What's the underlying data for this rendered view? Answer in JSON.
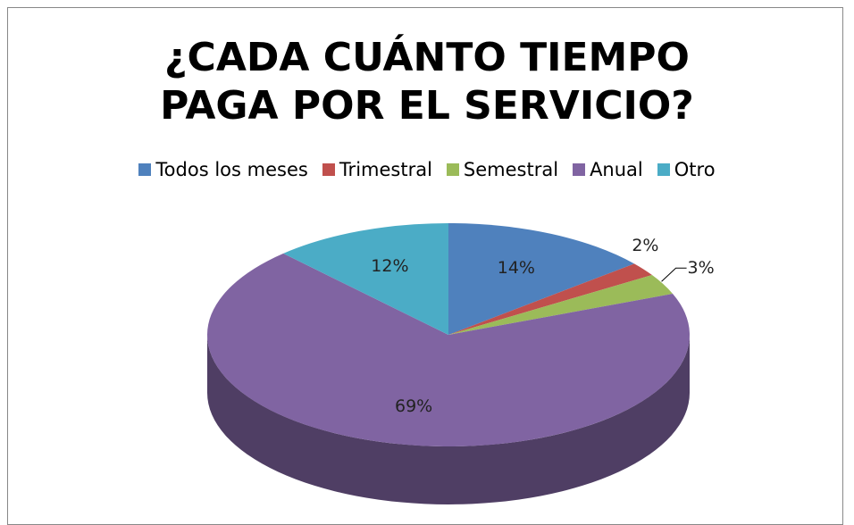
{
  "chart_data": {
    "type": "pie",
    "title": "¿CADA CUÁNTO TIEMPO PAGA POR EL SERVICIO?",
    "categories": [
      "Todos los meses",
      "Trimestral",
      "Semestral",
      "Anual",
      "Otro"
    ],
    "values": [
      14,
      2,
      3,
      69,
      12
    ],
    "value_labels": [
      "14%",
      "2%",
      "3%",
      "69%",
      "12%"
    ],
    "colors": [
      "#4f81bd",
      "#c0504d",
      "#9bbb59",
      "#8064a2",
      "#4bacc6"
    ],
    "legend": "top"
  }
}
